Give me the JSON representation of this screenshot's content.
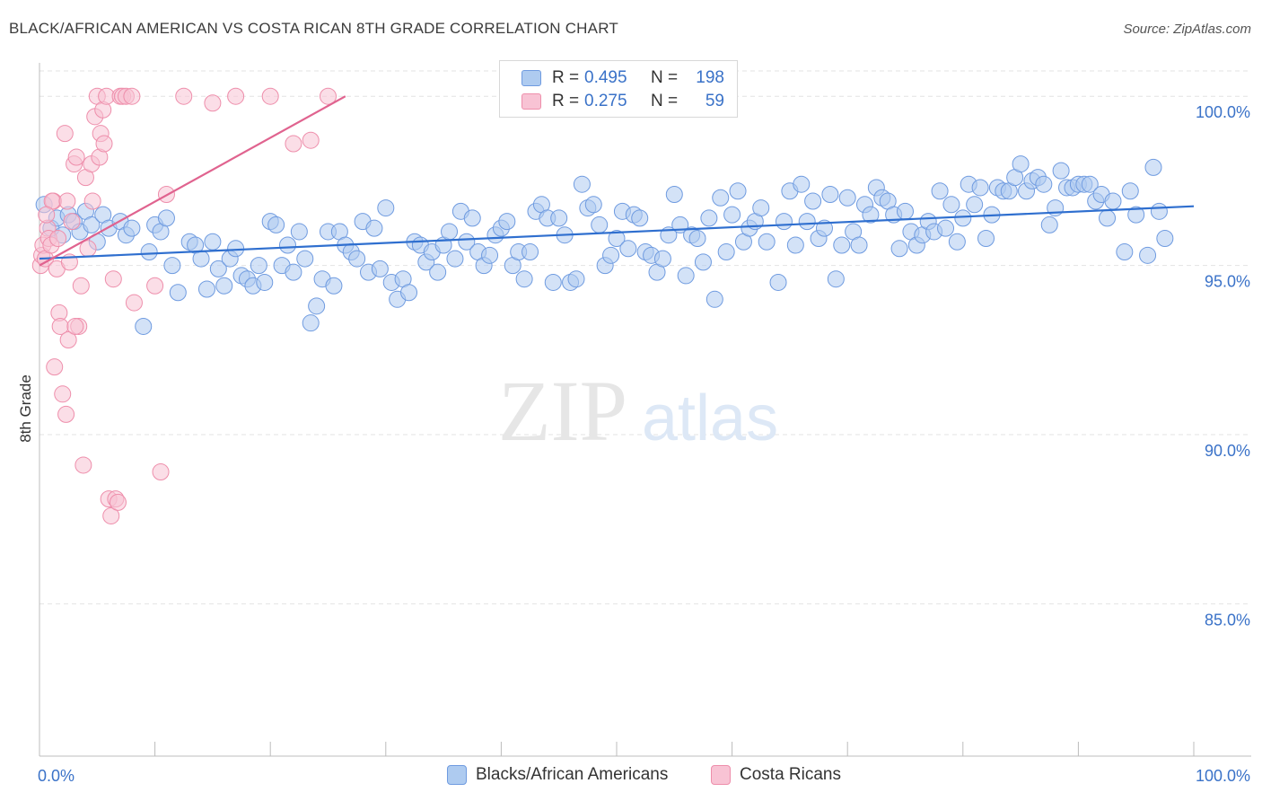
{
  "title": "BLACK/AFRICAN AMERICAN VS COSTA RICAN 8TH GRADE CORRELATION CHART",
  "source": "Source: ZipAtlas.com",
  "watermark": {
    "zip": "ZIP",
    "atlas": "atlas"
  },
  "legend_top": [
    {
      "r_label": "R =",
      "r_value": "0.495",
      "n_label": "N =",
      "n_value": "198"
    },
    {
      "r_label": "R =",
      "r_value": "0.275",
      "n_label": "N =",
      "n_value": "59"
    }
  ],
  "legend_bottom": [
    "Blacks/African Americans",
    "Costa Ricans"
  ],
  "colors": {
    "blue_fill": "#aecbf0",
    "blue_stroke": "#6f9be0",
    "blue_line": "#2f6fcf",
    "pink_fill": "#f8c3d4",
    "pink_stroke": "#ee8eab",
    "pink_line": "#e0638f",
    "axis_text": "#3a72c8",
    "grid": "#e3e3e3"
  },
  "chart_data": {
    "type": "scatter",
    "ylabel": "8th Grade",
    "xlabel": "",
    "xlim": [
      0,
      100
    ],
    "ylim": [
      80.5,
      101.2
    ],
    "x_tick_labels": [
      "0.0%",
      "100.0%"
    ],
    "y_ticks": [
      100,
      95,
      90,
      85
    ],
    "y_tick_labels": [
      "100.0%",
      "95.0%",
      "90.0%",
      "85.0%"
    ],
    "grid": true,
    "series": [
      {
        "name": "Blacks/African Americans",
        "color": "#aecbf0",
        "trend": {
          "x": [
            0,
            100
          ],
          "y": [
            95.2,
            96.75
          ]
        },
        "points": [
          [
            0.4,
            96.8
          ],
          [
            1.0,
            96.1
          ],
          [
            1.5,
            96.4
          ],
          [
            2.0,
            95.9
          ],
          [
            2.5,
            96.5
          ],
          [
            3.0,
            96.3
          ],
          [
            3.5,
            96.0
          ],
          [
            4.0,
            96.6
          ],
          [
            4.5,
            96.2
          ],
          [
            5.0,
            95.7
          ],
          [
            5.5,
            96.5
          ],
          [
            6.0,
            96.1
          ],
          [
            7.0,
            96.3
          ],
          [
            7.5,
            95.9
          ],
          [
            8.0,
            96.1
          ],
          [
            9.0,
            93.2
          ],
          [
            9.5,
            95.4
          ],
          [
            10.0,
            96.2
          ],
          [
            10.5,
            96.0
          ],
          [
            11.0,
            96.4
          ],
          [
            11.5,
            95.0
          ],
          [
            12.0,
            94.2
          ],
          [
            13.0,
            95.7
          ],
          [
            13.5,
            95.6
          ],
          [
            14.0,
            95.2
          ],
          [
            14.5,
            94.3
          ],
          [
            15.0,
            95.7
          ],
          [
            15.5,
            94.9
          ],
          [
            16.0,
            94.4
          ],
          [
            16.5,
            95.2
          ],
          [
            17.0,
            95.5
          ],
          [
            17.5,
            94.7
          ],
          [
            18.0,
            94.6
          ],
          [
            18.5,
            94.4
          ],
          [
            19.0,
            95.0
          ],
          [
            19.5,
            94.5
          ],
          [
            20.0,
            96.3
          ],
          [
            20.5,
            96.2
          ],
          [
            21.0,
            95.0
          ],
          [
            21.5,
            95.6
          ],
          [
            22.0,
            94.8
          ],
          [
            22.5,
            96.0
          ],
          [
            23.0,
            95.2
          ],
          [
            23.5,
            93.3
          ],
          [
            24.0,
            93.8
          ],
          [
            24.5,
            94.6
          ],
          [
            25.0,
            96.0
          ],
          [
            25.5,
            94.4
          ],
          [
            26.0,
            96.0
          ],
          [
            26.5,
            95.6
          ],
          [
            27.0,
            95.4
          ],
          [
            27.5,
            95.2
          ],
          [
            28.0,
            96.3
          ],
          [
            28.5,
            94.8
          ],
          [
            29.0,
            96.1
          ],
          [
            29.5,
            94.9
          ],
          [
            30.0,
            96.7
          ],
          [
            30.5,
            94.5
          ],
          [
            31.0,
            94.0
          ],
          [
            31.5,
            94.6
          ],
          [
            32.0,
            94.2
          ],
          [
            32.5,
            95.7
          ],
          [
            33.0,
            95.6
          ],
          [
            33.5,
            95.1
          ],
          [
            34.0,
            95.4
          ],
          [
            34.5,
            94.8
          ],
          [
            35.0,
            95.6
          ],
          [
            35.5,
            96.0
          ],
          [
            36.0,
            95.2
          ],
          [
            36.5,
            96.6
          ],
          [
            37.0,
            95.7
          ],
          [
            37.5,
            96.4
          ],
          [
            38.0,
            95.4
          ],
          [
            38.5,
            95.0
          ],
          [
            39.0,
            95.3
          ],
          [
            39.5,
            95.9
          ],
          [
            40.0,
            96.1
          ],
          [
            40.5,
            96.3
          ],
          [
            41.0,
            95.0
          ],
          [
            41.5,
            95.4
          ],
          [
            42.0,
            94.6
          ],
          [
            42.5,
            95.4
          ],
          [
            43.0,
            96.6
          ],
          [
            43.5,
            96.8
          ],
          [
            44.0,
            96.4
          ],
          [
            44.5,
            94.5
          ],
          [
            45.0,
            96.4
          ],
          [
            45.5,
            95.9
          ],
          [
            46.0,
            94.5
          ],
          [
            46.5,
            94.6
          ],
          [
            47.0,
            97.4
          ],
          [
            47.5,
            96.7
          ],
          [
            48.0,
            96.8
          ],
          [
            48.5,
            96.2
          ],
          [
            49.0,
            95.0
          ],
          [
            49.5,
            95.3
          ],
          [
            50.0,
            95.8
          ],
          [
            50.5,
            96.6
          ],
          [
            51.0,
            95.5
          ],
          [
            51.5,
            96.5
          ],
          [
            52.0,
            96.4
          ],
          [
            52.5,
            95.4
          ],
          [
            53.0,
            95.3
          ],
          [
            53.5,
            94.8
          ],
          [
            54.0,
            95.2
          ],
          [
            54.5,
            95.9
          ],
          [
            55.0,
            97.1
          ],
          [
            55.5,
            96.2
          ],
          [
            56.0,
            94.7
          ],
          [
            56.5,
            95.9
          ],
          [
            57.0,
            95.8
          ],
          [
            57.5,
            95.1
          ],
          [
            58.0,
            96.4
          ],
          [
            58.5,
            94.0
          ],
          [
            59.0,
            97.0
          ],
          [
            59.5,
            95.4
          ],
          [
            60.0,
            96.5
          ],
          [
            60.5,
            97.2
          ],
          [
            61.0,
            95.7
          ],
          [
            61.5,
            96.1
          ],
          [
            62.0,
            96.3
          ],
          [
            62.5,
            96.7
          ],
          [
            63.0,
            95.7
          ],
          [
            64.0,
            94.5
          ],
          [
            64.5,
            96.3
          ],
          [
            65.0,
            97.2
          ],
          [
            65.5,
            95.6
          ],
          [
            66.0,
            97.4
          ],
          [
            66.5,
            96.3
          ],
          [
            67.0,
            96.9
          ],
          [
            67.5,
            95.8
          ],
          [
            68.0,
            96.1
          ],
          [
            68.5,
            97.1
          ],
          [
            69.0,
            94.6
          ],
          [
            69.5,
            95.6
          ],
          [
            70.0,
            97.0
          ],
          [
            70.5,
            96.0
          ],
          [
            71.0,
            95.6
          ],
          [
            71.5,
            96.8
          ],
          [
            72.0,
            96.5
          ],
          [
            72.5,
            97.3
          ],
          [
            73.0,
            97.0
          ],
          [
            73.5,
            96.9
          ],
          [
            74.0,
            96.5
          ],
          [
            74.5,
            95.5
          ],
          [
            75.0,
            96.6
          ],
          [
            75.5,
            96.0
          ],
          [
            76.0,
            95.6
          ],
          [
            76.5,
            95.9
          ],
          [
            77.0,
            96.3
          ],
          [
            77.5,
            96.0
          ],
          [
            78.0,
            97.2
          ],
          [
            78.5,
            96.1
          ],
          [
            79.0,
            96.8
          ],
          [
            79.5,
            95.7
          ],
          [
            80.0,
            96.4
          ],
          [
            80.5,
            97.4
          ],
          [
            81.0,
            96.8
          ],
          [
            81.5,
            97.3
          ],
          [
            82.0,
            95.8
          ],
          [
            82.5,
            96.5
          ],
          [
            83.0,
            97.3
          ],
          [
            83.5,
            97.2
          ],
          [
            84.0,
            97.2
          ],
          [
            84.5,
            97.6
          ],
          [
            85.0,
            98.0
          ],
          [
            85.5,
            97.2
          ],
          [
            86.0,
            97.5
          ],
          [
            86.5,
            97.6
          ],
          [
            87.0,
            97.4
          ],
          [
            87.5,
            96.2
          ],
          [
            88.0,
            96.7
          ],
          [
            88.5,
            97.8
          ],
          [
            89.0,
            97.3
          ],
          [
            89.5,
            97.3
          ],
          [
            90.0,
            97.4
          ],
          [
            90.5,
            97.4
          ],
          [
            91.0,
            97.4
          ],
          [
            91.5,
            96.9
          ],
          [
            92.0,
            97.1
          ],
          [
            92.5,
            96.4
          ],
          [
            93.0,
            96.9
          ],
          [
            94.0,
            95.4
          ],
          [
            94.5,
            97.2
          ],
          [
            95.0,
            96.5
          ],
          [
            96.0,
            95.3
          ],
          [
            96.5,
            97.9
          ],
          [
            97.0,
            96.6
          ],
          [
            97.5,
            95.8
          ]
        ]
      },
      {
        "name": "Costa Ricans",
        "color": "#f8c3d4",
        "trend": {
          "x": [
            0,
            26.5
          ],
          "y": [
            95.0,
            100
          ]
        },
        "points": [
          [
            0.1,
            95.0
          ],
          [
            0.2,
            95.3
          ],
          [
            0.3,
            95.6
          ],
          [
            0.5,
            95.2
          ],
          [
            0.7,
            96.1
          ],
          [
            0.8,
            95.8
          ],
          [
            1.0,
            95.6
          ],
          [
            1.2,
            96.9
          ],
          [
            1.5,
            94.9
          ],
          [
            1.7,
            93.6
          ],
          [
            1.8,
            93.2
          ],
          [
            2.0,
            91.2
          ],
          [
            2.2,
            98.9
          ],
          [
            2.3,
            90.6
          ],
          [
            2.5,
            92.8
          ],
          [
            2.6,
            95.1
          ],
          [
            2.8,
            96.3
          ],
          [
            3.0,
            98.0
          ],
          [
            3.2,
            98.2
          ],
          [
            3.4,
            93.2
          ],
          [
            3.6,
            94.4
          ],
          [
            3.8,
            89.1
          ],
          [
            4.0,
            97.6
          ],
          [
            4.2,
            95.5
          ],
          [
            4.5,
            98.0
          ],
          [
            4.8,
            99.4
          ],
          [
            5.0,
            100.0
          ],
          [
            5.2,
            98.2
          ],
          [
            5.3,
            98.9
          ],
          [
            5.5,
            99.6
          ],
          [
            5.8,
            100.0
          ],
          [
            6.0,
            88.1
          ],
          [
            6.2,
            87.6
          ],
          [
            6.4,
            94.6
          ],
          [
            6.6,
            88.1
          ],
          [
            6.8,
            88.0
          ],
          [
            7.0,
            100.0
          ],
          [
            7.2,
            100.0
          ],
          [
            7.5,
            100.0
          ],
          [
            8.0,
            100.0
          ],
          [
            8.2,
            93.9
          ],
          [
            10.0,
            94.4
          ],
          [
            10.5,
            88.9
          ],
          [
            11.0,
            97.1
          ],
          [
            12.5,
            100.0
          ],
          [
            15.0,
            99.8
          ],
          [
            17.0,
            100.0
          ],
          [
            20.0,
            100.0
          ],
          [
            22.0,
            98.6
          ],
          [
            23.5,
            98.7
          ],
          [
            25.0,
            100.0
          ],
          [
            1.1,
            96.9
          ],
          [
            3.1,
            93.2
          ],
          [
            1.3,
            92.0
          ],
          [
            1.6,
            95.8
          ],
          [
            2.4,
            96.9
          ],
          [
            0.6,
            96.5
          ],
          [
            4.6,
            96.9
          ],
          [
            5.6,
            98.6
          ]
        ]
      }
    ]
  }
}
